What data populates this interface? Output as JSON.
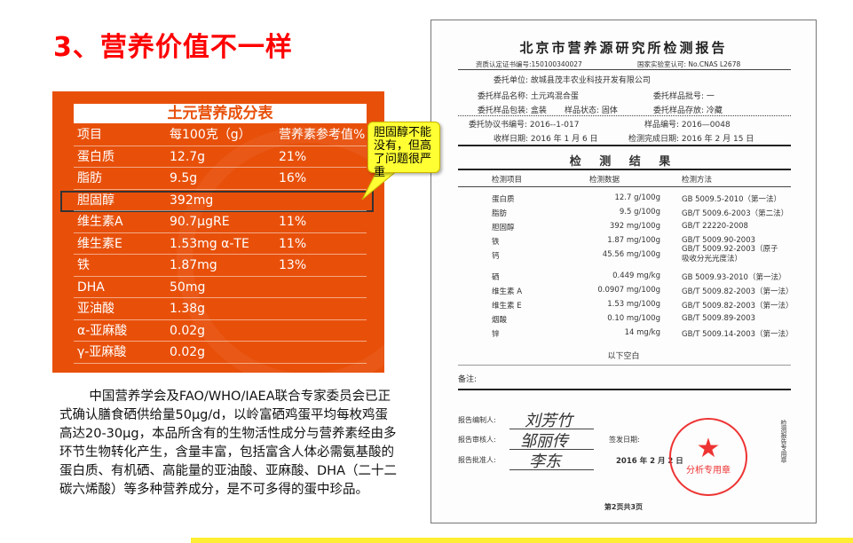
{
  "slide": {
    "title": "3、营养价值不一样"
  },
  "nutrition_table": {
    "title": "土元营养成分表",
    "headers": [
      "项目",
      "每100克（g）",
      "营养素参考值%"
    ],
    "rows": [
      [
        "蛋白质",
        "12.7g",
        "21%"
      ],
      [
        "脂肪",
        "9.5g",
        "16%"
      ],
      [
        "胆固醇",
        "392mg",
        ""
      ],
      [
        "维生素A",
        "90.7μgRE",
        "11%"
      ],
      [
        "维生素E",
        "1.53mg α-TE",
        "11%"
      ],
      [
        "铁",
        "1.87mg",
        "13%"
      ],
      [
        "DHA",
        "50mg",
        ""
      ],
      [
        "亚油酸",
        "1.38g",
        ""
      ],
      [
        "α-亚麻酸",
        "0.02g",
        ""
      ],
      [
        "γ-亚麻酸",
        "0.02g",
        ""
      ]
    ]
  },
  "callout": {
    "text": "胆固醇不能没有，但高了问题很严重"
  },
  "paragraph": "中国营养学会及FAO/WHO/IAEA联合专家委员会已正式确认膳食硒供给量50μg/d，以岭富硒鸡蛋平均每枚鸡蛋高达20-30μg，本品所含有的生物活性成分与营养素经由多环节生物转化产生，含量丰富，包括富含人体必需氨基酸的蛋白质、有机硒、高能量的亚油酸、亚麻酸、DHA（二十二碳六烯酸）等多种营养成分，是不可多得的蛋中珍品。",
  "report": {
    "title": "北京市营养源研究所检测报告",
    "cert": "资质认定证书编号:150100340027",
    "cnas": "国家实验室认可: No.CNAS L2678",
    "client": "委托单位: 故城县茂丰农业科技开发有限公司",
    "sample_name": "委托样品名称: 土元鸡混合蛋",
    "batch": "委托样品批号: 一",
    "package": "委托样品包装: 盒装",
    "state": "样品状态: 固体",
    "storage": "委托样品存放: 冷藏",
    "agreement": "委托协议书编号: 2016--1-017",
    "sample_no": "样品编号: 2016—0048",
    "received": "收样日期: 2016 年 1 月 6 日",
    "completed": "检测完成日期: 2016 年 2 月 15 日",
    "results_title": "检 测 结 果",
    "headers": [
      "检测项目",
      "检测数据",
      "检测方法"
    ],
    "rows": [
      [
        "蛋白质",
        "12.7 g/100g",
        "GB 5009.5-2010（第一法）"
      ],
      [
        "脂肪",
        "9.5 g/100g",
        "GB/T 5009.6-2003（第二法）"
      ],
      [
        "胆固醇",
        "392 mg/100g",
        "GB/T 22220-2008"
      ],
      [
        "铁",
        "1.87 mg/100g",
        "GB/T 5009.90-2003"
      ],
      [
        "钙",
        "45.56 mg/100g",
        "GB/T 5009.92-2003（原子吸收分光光度法）"
      ],
      [
        "硒",
        "0.449 mg/kg",
        "GB 5009.93-2010（第一法）"
      ],
      [
        "维生素 A",
        "0.0907 mg/100g",
        "GB/T 5009.82-2003（第一法）"
      ],
      [
        "维生素 E",
        "1.53 mg/100g",
        "GB/T 5009.82-2003（第一法）"
      ],
      [
        "烟酸",
        "0.10 mg/100g",
        "GB/T 5009.89-2003"
      ],
      [
        "锌",
        "14 mg/kg",
        "GB/T 5009.14-2003（第一法）"
      ]
    ],
    "blank_below": "以下空白",
    "remarks": "备注:",
    "compiler": "报告编制人:",
    "reviewer": "报告审核人:",
    "approver": "报告批准人:",
    "issue_date_label": "签发日期:",
    "issue_date": "2016 年 2 月 2 日",
    "stamp_text": "北京市营养源研究所 分析专用章",
    "stamp_bottom": "分析专用章",
    "side_note": "检测报告专用章",
    "page": "第2页共3页",
    "signatures": [
      "刘芳竹",
      "邹丽传",
      "李东"
    ]
  },
  "colors": {
    "title": "#ff0000",
    "table_bg": "#e8500a",
    "callout": "#ffff33",
    "stamp": "#ee3333"
  }
}
